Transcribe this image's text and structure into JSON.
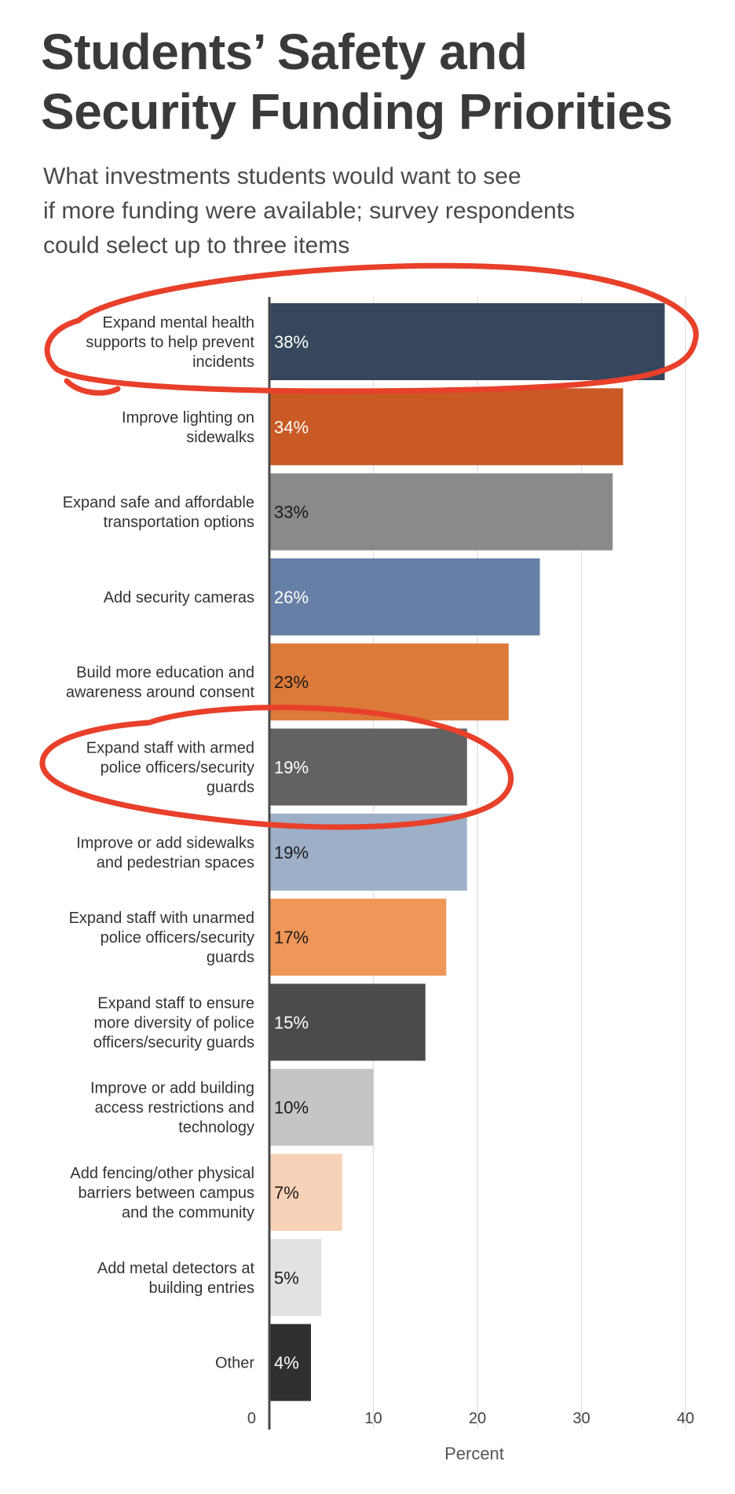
{
  "title_line1": "Students’ Safety and",
  "title_line2": "Security Funding Priorities",
  "subtitle_line1": "What investments students would want to see",
  "subtitle_line2": "if more funding were available; survey respondents",
  "subtitle_line3": "could select up to three items",
  "chart_data": {
    "type": "bar",
    "orientation": "horizontal",
    "xlabel": "Percent",
    "xlim": [
      0,
      40
    ],
    "xticks": [
      0,
      10,
      20,
      30,
      40
    ],
    "grid": true,
    "categories": [
      [
        "Expand mental health",
        "supports to help prevent",
        "incidents"
      ],
      [
        "Improve lighting on",
        "sidewalks"
      ],
      [
        "Expand safe and affordable",
        "transportation options"
      ],
      [
        "Add security cameras"
      ],
      [
        "Build more education and",
        "awareness around consent"
      ],
      [
        "Expand staff with armed",
        "police officers/security",
        "guards"
      ],
      [
        "Improve or add sidewalks",
        "and pedestrian spaces"
      ],
      [
        "Expand staff with unarmed",
        "police officers/security",
        "guards"
      ],
      [
        "Expand staff to ensure",
        "more diversity of police",
        "officers/security guards"
      ],
      [
        "Improve or add building",
        "access restrictions and",
        "technology"
      ],
      [
        "Add fencing/other physical",
        "barriers between campus",
        "and the community"
      ],
      [
        "Add metal detectors at",
        "building entries"
      ],
      [
        "Other"
      ]
    ],
    "values": [
      38,
      34,
      33,
      26,
      23,
      19,
      19,
      17,
      15,
      10,
      7,
      5,
      4
    ],
    "value_labels": [
      "38%",
      "34%",
      "33%",
      "26%",
      "23%",
      "19%",
      "19%",
      "17%",
      "15%",
      "10%",
      "7%",
      "5%",
      "4%"
    ],
    "colors": [
      "#36465c",
      "#ca5a25",
      "#8a8a8a",
      "#667fa6",
      "#dc7a39",
      "#626262",
      "#9eafc8",
      "#f09658",
      "#4b4b4b",
      "#c5c5c5",
      "#f8d2b8",
      "#e2e2e2",
      "#303030"
    ],
    "label_colors": [
      "#ffffff",
      "#ffffff",
      "#1a1a1a",
      "#ffffff",
      "#1a1a1a",
      "#ffffff",
      "#1a1a1a",
      "#1a1a1a",
      "#ffffff",
      "#1a1a1a",
      "#1a1a1a",
      "#1a1a1a",
      "#ffffff"
    ],
    "highlighted": [
      0,
      5
    ],
    "highlight_color": "#e8402a"
  }
}
